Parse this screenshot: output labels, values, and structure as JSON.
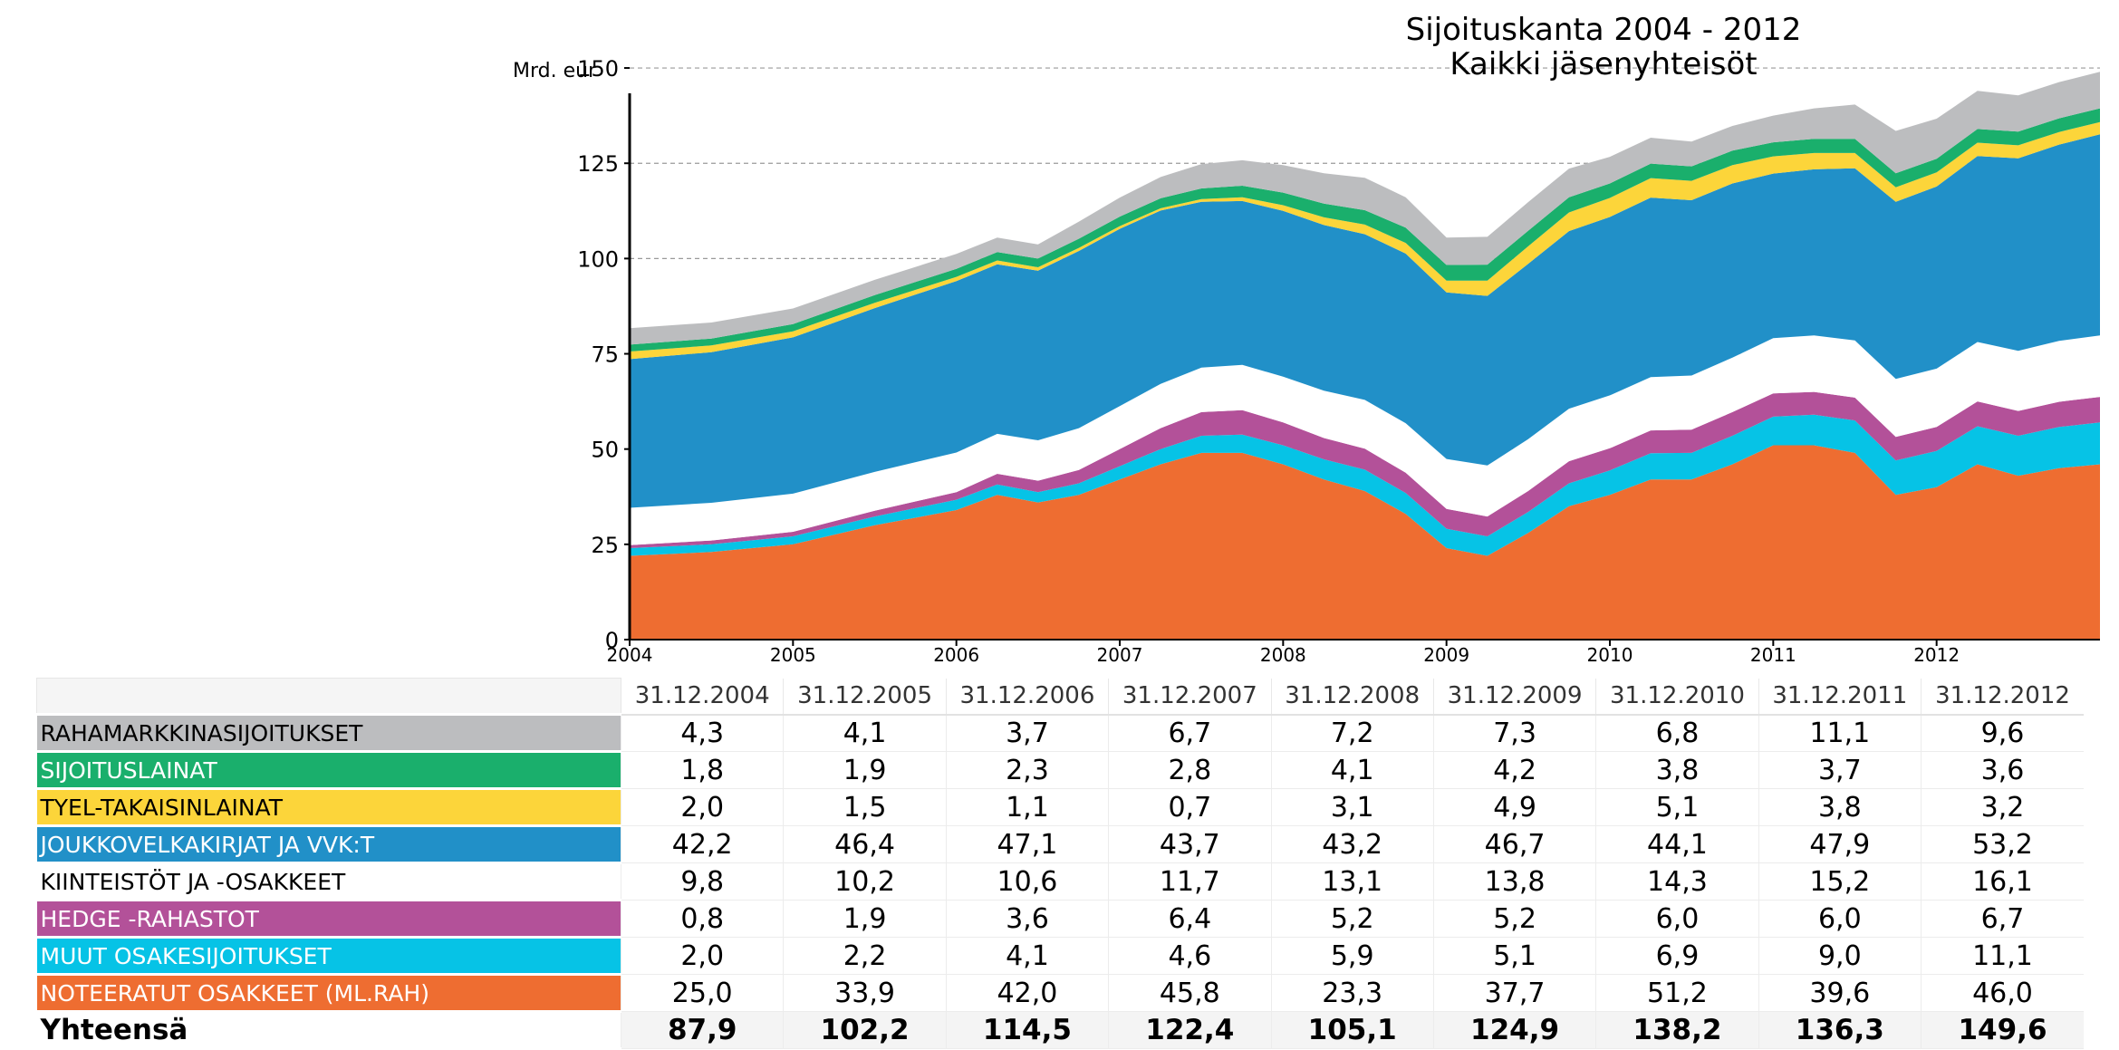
{
  "chart_data": {
    "type": "area",
    "stacked": true,
    "title": "Sijoituskanta 2004 - 2012",
    "subtitle": "Kaikki jäsenyhteisöt",
    "ylabel": "Mrd. eur",
    "ylim": [
      0,
      160
    ],
    "yticks": [
      0,
      25,
      50,
      75,
      100,
      125,
      150
    ],
    "x_tick_labels": [
      "2004",
      "2005",
      "2006",
      "2007",
      "2008",
      "2009",
      "2010",
      "2011",
      "2012"
    ],
    "grid": true,
    "x": [
      2004.0,
      2004.5,
      2005.0,
      2005.5,
      2006.0,
      2006.25,
      2006.5,
      2006.75,
      2007.0,
      2007.25,
      2007.5,
      2007.75,
      2008.0,
      2008.25,
      2008.5,
      2008.75,
      2009.0,
      2009.25,
      2009.5,
      2009.75,
      2010.0,
      2010.25,
      2010.5,
      2010.75,
      2011.0,
      2011.25,
      2011.5,
      2011.75,
      2012.0,
      2012.25,
      2012.5,
      2012.75,
      2013.0
    ],
    "series": [
      {
        "name": "NOTEERATUT OSAKKEET (ML.RAH)",
        "color": "#ee6d31",
        "values": [
          22,
          23,
          25,
          30,
          34,
          38,
          36,
          38,
          42,
          46,
          49,
          49,
          46,
          42,
          39,
          33,
          24,
          22,
          28,
          35,
          38,
          42,
          42,
          46,
          51,
          51,
          49,
          38,
          40,
          46,
          43,
          45,
          46
        ]
      },
      {
        "name": "MUUT OSAKESIJOITUKSET",
        "color": "#06c3e6",
        "values": [
          2,
          2,
          2.1,
          2.3,
          2.7,
          2.7,
          2.7,
          3,
          3.5,
          4,
          4.5,
          4.8,
          5,
          5.3,
          5.6,
          5.5,
          5.1,
          5.1,
          5.5,
          6,
          6.4,
          6.9,
          7,
          7.5,
          7.5,
          8,
          8.5,
          9,
          9.5,
          10,
          10.5,
          10.8,
          11
        ]
      },
      {
        "name": "HEDGE -RAHASTOT",
        "color": "#b35199",
        "values": [
          0.8,
          1,
          1.2,
          1.5,
          2,
          2.8,
          3,
          3.5,
          4.5,
          5.5,
          6.2,
          6.4,
          6,
          5.6,
          5.5,
          5.3,
          5.2,
          5.2,
          5.5,
          5.8,
          5.8,
          6,
          6.1,
          6.2,
          6.1,
          6,
          6,
          6.2,
          6.3,
          6.5,
          6.5,
          6.6,
          6.7
        ]
      },
      {
        "name": "KIINTEISTÖT JA -OSAKKEET",
        "color": "#ffffff",
        "values": [
          9.8,
          9.9,
          10,
          10.2,
          10.4,
          10.5,
          10.6,
          11,
          11.3,
          11.6,
          11.7,
          11.9,
          12,
          12.4,
          12.8,
          13,
          13.1,
          13.4,
          13.6,
          13.8,
          13.9,
          14,
          14.2,
          14.3,
          14.5,
          14.8,
          15,
          15.2,
          15.3,
          15.6,
          15.8,
          16,
          16.1
        ]
      },
      {
        "name": "JOUKKOVELKAKIRJAT JA VVK:T",
        "color": "#2190c8",
        "values": [
          39,
          39.5,
          41,
          43,
          45,
          44.5,
          44.5,
          46.5,
          46.5,
          45.5,
          43.5,
          43,
          43.5,
          43.5,
          43.5,
          44.5,
          43.7,
          44.5,
          46,
          46.6,
          46.8,
          47.1,
          46,
          45.7,
          43.2,
          43.6,
          45.2,
          46.5,
          47.8,
          48.8,
          50.5,
          51.5,
          52.8
        ]
      },
      {
        "name": "TYEL-TAKAISINLAINAT",
        "color": "#fcd53a",
        "values": [
          2,
          1.8,
          1.6,
          1.4,
          1.1,
          1,
          0.9,
          0.8,
          0.7,
          0.6,
          0.7,
          1,
          1.5,
          2,
          2.5,
          2.8,
          3.1,
          4,
          4.6,
          4.9,
          5,
          5.1,
          5.1,
          4.8,
          4.5,
          4.3,
          4,
          3.8,
          3.7,
          3.5,
          3.4,
          3.3,
          3.2
        ]
      },
      {
        "name": "SIJOITUSLAINAT",
        "color": "#1aaf6c",
        "values": [
          1.8,
          1.8,
          1.9,
          2,
          2.1,
          2.2,
          2.3,
          2.4,
          2.5,
          2.6,
          2.8,
          3,
          3.3,
          3.6,
          3.8,
          4,
          4.1,
          4.2,
          4.1,
          4,
          3.8,
          3.8,
          3.8,
          3.8,
          3.7,
          3.7,
          3.7,
          3.7,
          3.6,
          3.6,
          3.6,
          3.6,
          3.6
        ]
      },
      {
        "name": "RAHAMARKKINASIJOITUKSET",
        "color": "#bcbdbf",
        "values": [
          4.3,
          4.2,
          4.1,
          4,
          3.9,
          3.8,
          3.7,
          4.5,
          5,
          5.6,
          6.4,
          6.7,
          7.2,
          8,
          8.5,
          8,
          7.2,
          7.3,
          7.5,
          7.5,
          7,
          6.8,
          6.5,
          6.5,
          7,
          8,
          9,
          11.1,
          10.5,
          10,
          9.5,
          9.5,
          9.6
        ]
      }
    ],
    "table": {
      "header_row": [
        "31.12.2004",
        "31.12.2005",
        "31.12.2006",
        "31.12.2007",
        "31.12.2008",
        "31.12.2009",
        "31.12.2010",
        "31.12.2011",
        "31.12.2012"
      ],
      "rows": [
        {
          "label": "RAHAMARKKINASIJOITUKSET",
          "color": "#bcbdbf",
          "values": [
            "4,3",
            "4,1",
            "3,7",
            "6,7",
            "7,2",
            "7,3",
            "6,8",
            "11,1",
            "9,6"
          ]
        },
        {
          "label": "SIJOITUSLAINAT",
          "color": "#1aaf6c",
          "values": [
            "1,8",
            "1,9",
            "2,3",
            "2,8",
            "4,1",
            "4,2",
            "3,8",
            "3,7",
            "3,6"
          ]
        },
        {
          "label": "TYEL-TAKAISINLAINAT",
          "color": "#fcd53a",
          "values": [
            "2,0",
            "1,5",
            "1,1",
            "0,7",
            "3,1",
            "4,9",
            "5,1",
            "3,8",
            "3,2"
          ]
        },
        {
          "label": "JOUKKOVELKAKIRJAT JA VVK:T",
          "color": "#2190c8",
          "values": [
            "42,2",
            "46,4",
            "47,1",
            "43,7",
            "43,2",
            "46,7",
            "44,1",
            "47,9",
            "53,2"
          ]
        },
        {
          "label": "KIINTEISTÖT JA -OSAKKEET",
          "color": "#ffffff",
          "values": [
            "9,8",
            "10,2",
            "10,6",
            "11,7",
            "13,1",
            "13,8",
            "14,3",
            "15,2",
            "16,1"
          ]
        },
        {
          "label": "HEDGE -RAHASTOT",
          "color": "#b35199",
          "values": [
            "0,8",
            "1,9",
            "3,6",
            "6,4",
            "5,2",
            "5,2",
            "6,0",
            "6,0",
            "6,7"
          ]
        },
        {
          "label": "MUUT OSAKESIJOITUKSET",
          "color": "#06c3e6",
          "values": [
            "2,0",
            "2,2",
            "4,1",
            "4,6",
            "5,9",
            "5,1",
            "6,9",
            "9,0",
            "11,1"
          ]
        },
        {
          "label": "NOTEERATUT OSAKKEET (ML.RAH)",
          "color": "#ee6d31",
          "values": [
            "25,0",
            "33,9",
            "42,0",
            "45,8",
            "23,3",
            "37,7",
            "51,2",
            "39,6",
            "46,0"
          ]
        }
      ],
      "total": {
        "label": "Yhteensä",
        "values": [
          "87,9",
          "102,2",
          "114,5",
          "122,4",
          "105,1",
          "124,9",
          "138,2",
          "136,3",
          "149,6"
        ]
      }
    }
  }
}
